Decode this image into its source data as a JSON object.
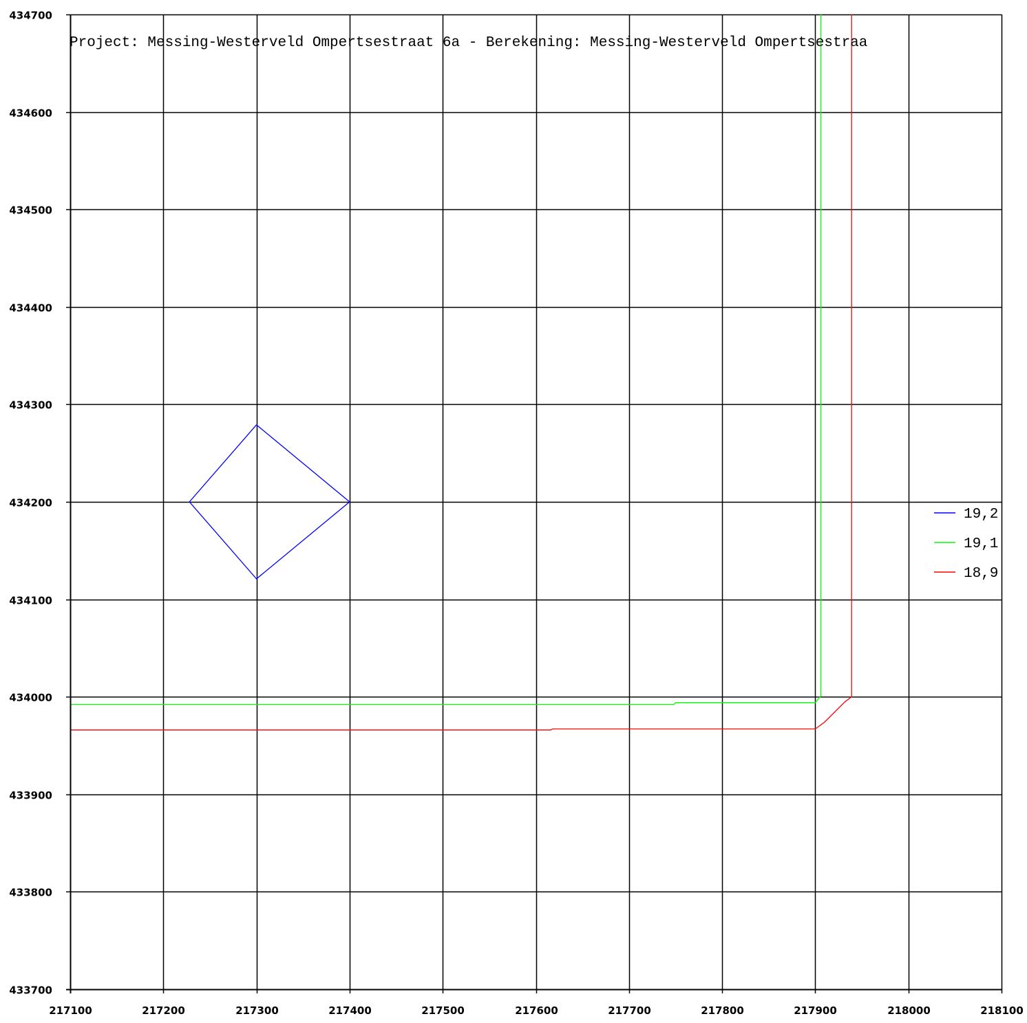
{
  "chart_data": {
    "type": "line",
    "title": "Project: Messing-Westerveld Ompertsestraat 6a  -  Berekening: Messing-Westerveld Ompertsestraa",
    "xlabel": "",
    "ylabel": "",
    "xlim": [
      217100,
      218100
    ],
    "ylim": [
      433700,
      434700
    ],
    "x_ticks": [
      "217100",
      "217200",
      "217300",
      "217400",
      "217500",
      "217600",
      "217700",
      "217800",
      "217900",
      "218000",
      "218100"
    ],
    "y_ticks": [
      "434700",
      "434600",
      "434500",
      "434400",
      "434300",
      "434200",
      "434100",
      "434000",
      "433900",
      "433800",
      "433700"
    ],
    "grid": true,
    "legend_position": "right",
    "series": [
      {
        "name": "19,2",
        "color": "#0000ff",
        "points": [
          [
            217300,
            434279
          ],
          [
            217400,
            434200
          ],
          [
            217300,
            434121
          ],
          [
            217228,
            434200
          ],
          [
            217300,
            434279
          ]
        ]
      },
      {
        "name": "19,1",
        "color": "#00ff00",
        "points": [
          [
            217100,
            433992
          ],
          [
            217748,
            433992
          ],
          [
            217750,
            433994
          ],
          [
            217900,
            433994
          ],
          [
            217906,
            434001
          ],
          [
            217906,
            434700
          ]
        ]
      },
      {
        "name": "18,9",
        "color": "#ff0000",
        "points": [
          [
            217100,
            433966
          ],
          [
            217616,
            433966
          ],
          [
            217618,
            433967
          ],
          [
            217900,
            433967
          ],
          [
            217910,
            433974
          ],
          [
            217932,
            433995
          ],
          [
            217939,
            434000
          ],
          [
            217939,
            434700
          ]
        ]
      }
    ]
  }
}
